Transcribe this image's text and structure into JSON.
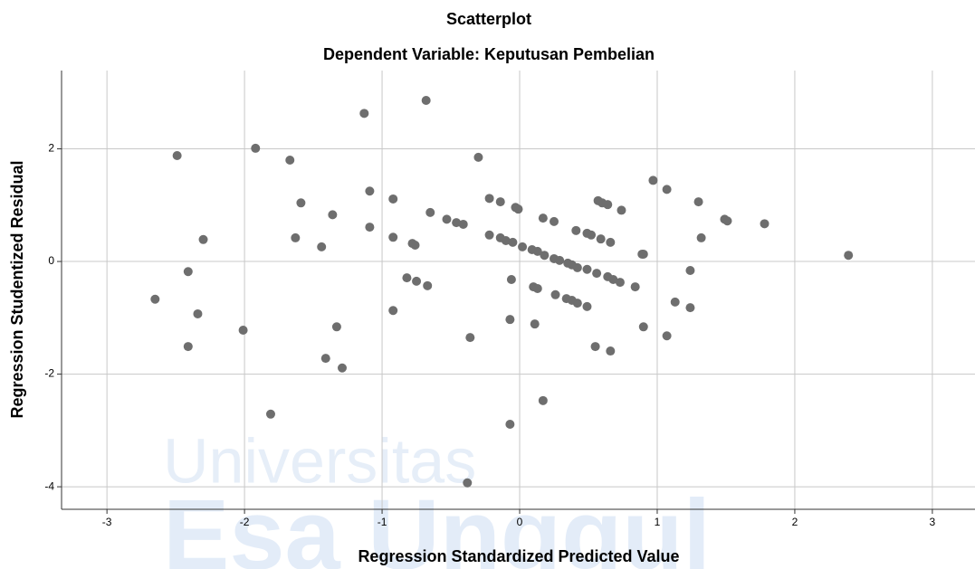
{
  "chart_data": {
    "type": "scatter",
    "title": "Scatterplot",
    "subtitle": "Dependent Variable: Keputusan Pembelian",
    "x_label": "Regression Standardized Predicted Value",
    "y_label": "Regression Studentized Residual",
    "watermark": [
      "Universitas",
      "Esa Unggul"
    ],
    "color": "#6e6e6e",
    "grid": true,
    "xlim": [
      -3.33,
      3.31
    ],
    "ylim": [
      -4.4,
      3.39
    ],
    "xticks": [
      -3,
      -2,
      -1,
      0,
      1,
      2,
      3
    ],
    "yticks": [
      -4,
      -2,
      0,
      2
    ],
    "x": [
      -2.49,
      -1.92,
      -1.67,
      -1.13,
      -0.68,
      -0.3,
      -1.59,
      -1.09,
      -0.92,
      -1.36,
      -1.09,
      -1.63,
      -1.44,
      -0.92,
      -0.78,
      -0.76,
      -0.65,
      -0.53,
      -0.46,
      -0.41,
      -0.22,
      -0.14,
      -0.03,
      -0.01,
      -0.22,
      -0.14,
      -0.1,
      -0.05,
      0.02,
      0.09,
      0.13,
      0.18,
      0.25,
      0.29,
      0.35,
      0.38,
      0.42,
      0.49,
      0.56,
      0.64,
      0.68,
      0.73,
      0.84,
      0.17,
      0.25,
      0.41,
      0.49,
      0.52,
      0.59,
      0.66,
      0.57,
      0.6,
      0.64,
      0.74,
      0.97,
      1.07,
      1.3,
      0.89,
      0.9,
      1.49,
      1.51,
      1.78,
      1.32,
      1.24,
      2.39,
      -2.3,
      -2.41,
      -2.65,
      -2.34,
      -2.41,
      -2.01,
      -1.33,
      -1.41,
      -1.29,
      -1.81,
      -0.82,
      -0.75,
      -0.67,
      -0.92,
      -0.36,
      -0.06,
      -0.07,
      0.1,
      0.13,
      0.11,
      0.26,
      0.34,
      0.38,
      0.42,
      0.49,
      0.9,
      1.13,
      1.24,
      1.07,
      0.55,
      0.66,
      0.17,
      -0.07,
      -0.38
    ],
    "values": [
      1.88,
      2.01,
      1.8,
      2.63,
      2.86,
      1.85,
      1.04,
      1.25,
      1.11,
      0.83,
      0.61,
      0.42,
      0.26,
      0.43,
      0.32,
      0.29,
      0.87,
      0.75,
      0.69,
      0.66,
      1.12,
      1.06,
      0.96,
      0.93,
      0.47,
      0.42,
      0.37,
      0.34,
      0.26,
      0.21,
      0.18,
      0.11,
      0.05,
      0.02,
      -0.03,
      -0.06,
      -0.11,
      -0.14,
      -0.21,
      -0.27,
      -0.32,
      -0.37,
      -0.45,
      0.77,
      0.71,
      0.55,
      0.5,
      0.47,
      0.4,
      0.34,
      1.08,
      1.04,
      1.01,
      0.91,
      1.44,
      1.28,
      1.06,
      0.13,
      0.13,
      0.75,
      0.72,
      0.67,
      0.42,
      -0.16,
      0.11,
      0.39,
      -0.18,
      -0.67,
      -0.93,
      -1.51,
      -1.22,
      -1.16,
      -1.72,
      -1.89,
      -2.71,
      -0.29,
      -0.35,
      -0.43,
      -0.87,
      -1.35,
      -0.32,
      -1.03,
      -0.45,
      -0.48,
      -1.11,
      -0.59,
      -0.66,
      -0.69,
      -0.74,
      -0.8,
      -1.16,
      -0.72,
      -0.82,
      -1.32,
      -1.51,
      -1.59,
      -2.47,
      -2.89,
      -3.93
    ]
  }
}
